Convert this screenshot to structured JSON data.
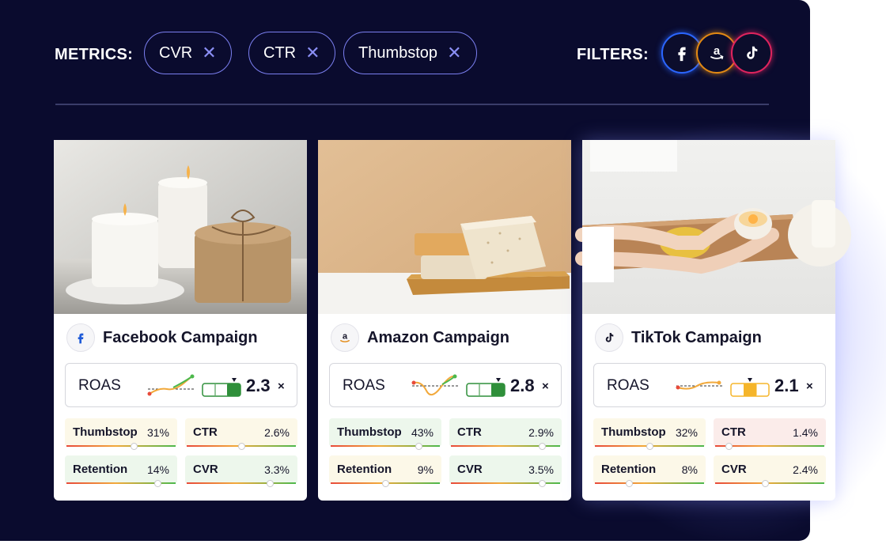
{
  "header": {
    "metrics_label": "METRICS:",
    "filters_label": "FILTERS:",
    "metric_chips": [
      {
        "label": "CVR",
        "close_icon": "close-icon"
      },
      {
        "label": "CTR",
        "close_icon": "close-icon"
      },
      {
        "label": "Thumbstop",
        "close_icon": "close-icon"
      }
    ],
    "filter_buttons": [
      {
        "icon": "facebook-icon",
        "glyph": "f",
        "color": "#2b66ff"
      },
      {
        "icon": "amazon-icon",
        "glyph": "a",
        "color": "#e38a14"
      },
      {
        "icon": "tiktok-icon",
        "glyph": "♪",
        "color": "#e0245e"
      }
    ]
  },
  "cards": [
    {
      "title": "Facebook Campaign",
      "platform_icon": "facebook-icon",
      "roas": {
        "label": "ROAS",
        "value": "2.3",
        "unit": "×",
        "gauge_color": "#2f8f3a"
      },
      "metrics": [
        {
          "label": "Thumbstop",
          "value": "31%",
          "level": 0.62,
          "tint": "yellow"
        },
        {
          "label": "CTR",
          "value": "2.6%",
          "level": 0.5,
          "tint": "yellow"
        },
        {
          "label": "Retention",
          "value": "14%",
          "level": 0.85,
          "tint": "green"
        },
        {
          "label": "CVR",
          "value": "3.3%",
          "level": 0.78,
          "tint": "green"
        }
      ]
    },
    {
      "title": "Amazon Campaign",
      "platform_icon": "amazon-icon",
      "roas": {
        "label": "ROAS",
        "value": "2.8",
        "unit": "×",
        "gauge_color": "#2f8f3a"
      },
      "metrics": [
        {
          "label": "Thumbstop",
          "value": "43%",
          "level": 0.82,
          "tint": "green"
        },
        {
          "label": "CTR",
          "value": "2.9%",
          "level": 0.85,
          "tint": "green"
        },
        {
          "label": "Retention",
          "value": "9%",
          "level": 0.5,
          "tint": "yellow"
        },
        {
          "label": "CVR",
          "value": "3.5%",
          "level": 0.85,
          "tint": "green"
        }
      ]
    },
    {
      "title": "TikTok Campaign",
      "platform_icon": "tiktok-icon",
      "roas": {
        "label": "ROAS",
        "value": "2.1",
        "unit": "×",
        "gauge_color": "#f5b52a"
      },
      "metrics": [
        {
          "label": "Thumbstop",
          "value": "32%",
          "level": 0.5,
          "tint": "yellow"
        },
        {
          "label": "CTR",
          "value": "1.4%",
          "level": 0.1,
          "tint": "pink"
        },
        {
          "label": "Retention",
          "value": "8%",
          "level": 0.3,
          "tint": "yellow"
        },
        {
          "label": "CVR",
          "value": "2.4%",
          "level": 0.45,
          "tint": "yellow"
        }
      ]
    }
  ]
}
